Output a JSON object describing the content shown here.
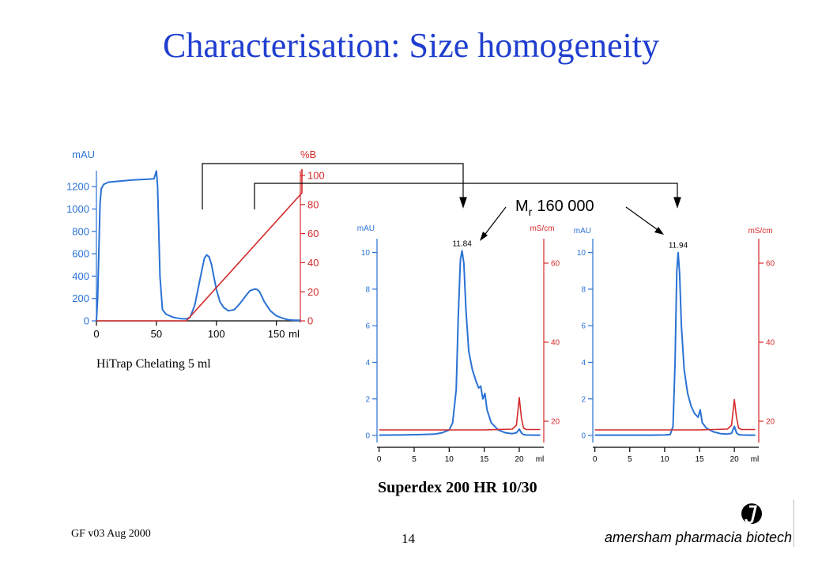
{
  "slide": {
    "title": "Characterisation: Size homogeneity",
    "footer_left": "GF v03 Aug 2000",
    "page_number": "14",
    "logo_text": "amersham pharmacia biotech"
  },
  "annotation": {
    "label_main": "M",
    "label_sub": "r",
    "label_value": "160 000"
  },
  "colors": {
    "title": "#1f3ecf",
    "uv_trace": "#2a72d4",
    "secondary_trace": "#d42a2a"
  },
  "chart_data": [
    {
      "type": "line",
      "caption": "HiTrap Chelating 5 ml",
      "y_left_label": "mAU",
      "y_right_label": "%B",
      "x_unit": "ml",
      "xlim": [
        0,
        170
      ],
      "ylim": [
        0,
        1300
      ],
      "y2lim": [
        0,
        100
      ],
      "x_ticks": [
        0,
        50,
        100,
        150
      ],
      "y_ticks": [
        0,
        200,
        400,
        600,
        800,
        1000,
        1200
      ],
      "y2_ticks": [
        0,
        20,
        40,
        60,
        80,
        100
      ],
      "series": [
        {
          "axis": "left",
          "color": "#2a72d4",
          "x": [
            0,
            1,
            2,
            3,
            4,
            6,
            10,
            20,
            30,
            40,
            48,
            50,
            51,
            52,
            53,
            55,
            58,
            60,
            62,
            65,
            70,
            75,
            78,
            82,
            85,
            88,
            90,
            92,
            94,
            96,
            98,
            100,
            103,
            106,
            110,
            115,
            120,
            125,
            128,
            132,
            134,
            136,
            140,
            145,
            150,
            155,
            158,
            160,
            165,
            170
          ],
          "y": [
            0,
            200,
            600,
            1050,
            1180,
            1220,
            1240,
            1250,
            1260,
            1265,
            1270,
            1340,
            1200,
            800,
            400,
            100,
            60,
            50,
            40,
            30,
            20,
            18,
            30,
            140,
            300,
            460,
            560,
            590,
            570,
            500,
            390,
            280,
            170,
            120,
            90,
            100,
            160,
            230,
            270,
            285,
            280,
            260,
            170,
            90,
            45,
            25,
            15,
            10,
            5,
            5
          ]
        },
        {
          "axis": "right",
          "color": "#d42a2a",
          "x": [
            0,
            75,
            176,
            177
          ],
          "y": [
            0,
            0,
            88,
            140
          ]
        }
      ]
    },
    {
      "type": "line",
      "y_left_label": "mAU",
      "y_right_label": "mS/cm",
      "x_unit": "ml",
      "peak_label": "11.84",
      "xlim": [
        -0.3,
        23.5
      ],
      "ylim": [
        -0.3,
        10.5
      ],
      "y2lim": [
        15,
        65
      ],
      "x_ticks": [
        0,
        5,
        10,
        15,
        20
      ],
      "y_ticks": [
        0,
        2,
        4,
        6,
        8,
        10
      ],
      "y2_ticks": [
        20,
        40,
        60
      ],
      "series": [
        {
          "axis": "left",
          "color": "#2a72d4",
          "x": [
            0,
            3,
            6,
            8,
            9,
            10,
            10.5,
            11,
            11.3,
            11.6,
            11.84,
            12.1,
            12.4,
            12.8,
            13.3,
            13.8,
            14.2,
            14.5,
            14.8,
            15.1,
            15.4,
            16,
            17,
            18,
            19,
            19.6,
            20,
            20.3,
            20.6,
            21,
            22,
            23
          ],
          "y": [
            0.02,
            0.03,
            0.05,
            0.08,
            0.15,
            0.3,
            0.7,
            2.5,
            6.5,
            9.6,
            10.1,
            9.4,
            6.8,
            4.6,
            3.6,
            3.0,
            2.6,
            2.7,
            2.0,
            2.3,
            1.4,
            0.7,
            0.3,
            0.15,
            0.1,
            0.15,
            0.35,
            0.15,
            0.05,
            0.03,
            0.02,
            0.02
          ]
        },
        {
          "axis": "right",
          "color": "#d42a2a",
          "x": [
            0,
            15,
            19,
            19.6,
            20,
            20.3,
            20.6,
            21,
            23
          ],
          "y": [
            17.8,
            17.8,
            18,
            19,
            26,
            21,
            18.3,
            17.9,
            17.9
          ]
        }
      ]
    },
    {
      "type": "line",
      "y_left_label": "mAU",
      "y_right_label": "mS/cm",
      "x_unit": "ml",
      "peak_label": "11.94",
      "xlim": [
        -0.3,
        23.5
      ],
      "ylim": [
        -0.3,
        10.5
      ],
      "y2lim": [
        15,
        65
      ],
      "x_ticks": [
        0,
        5,
        10,
        15,
        20
      ],
      "y_ticks": [
        0,
        2,
        4,
        6,
        8,
        10
      ],
      "y2_ticks": [
        20,
        40,
        60
      ],
      "series": [
        {
          "axis": "left",
          "color": "#2a72d4",
          "x": [
            0,
            3,
            6,
            8,
            10,
            10.8,
            11.2,
            11.5,
            11.75,
            11.94,
            12.15,
            12.4,
            12.8,
            13.3,
            13.8,
            14.3,
            14.8,
            15.1,
            15.4,
            16,
            17,
            18,
            19,
            19.6,
            20,
            20.3,
            20.6,
            21,
            22,
            23
          ],
          "y": [
            0.02,
            0.02,
            0.02,
            0.02,
            0.03,
            0.05,
            0.5,
            4.0,
            9.0,
            10.0,
            8.8,
            6.0,
            3.6,
            2.3,
            1.6,
            1.2,
            1.0,
            1.4,
            0.7,
            0.4,
            0.2,
            0.1,
            0.08,
            0.12,
            0.5,
            0.15,
            0.05,
            0.03,
            0.02,
            0.02
          ]
        },
        {
          "axis": "right",
          "color": "#d42a2a",
          "x": [
            0,
            15,
            19,
            19.6,
            20,
            20.3,
            20.6,
            21,
            23
          ],
          "y": [
            17.8,
            17.8,
            18,
            19,
            25.5,
            21,
            18.3,
            17.9,
            17.9
          ]
        }
      ]
    }
  ],
  "superdex_caption": "Superdex 200 HR 10/30"
}
